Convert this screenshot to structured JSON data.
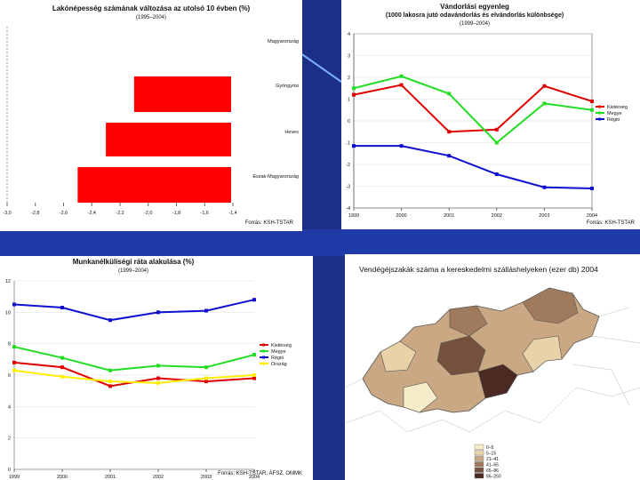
{
  "chart_data": [
    {
      "type": "bar",
      "title": "Lakónépesség számának változása az utolsó 10 évben (%)",
      "subtitle": "(1995–2004)",
      "categories": [
        "Magyarország",
        "Gyöngyösi",
        "Heves",
        "Észak-Magyarország"
      ],
      "values": [
        -1.3,
        -2.1,
        -2.3,
        -2.5
      ],
      "xlim": [
        -3.0,
        -1.0
      ],
      "xticks": [
        "-3,0",
        "-2,8",
        "-2,6",
        "-2,4",
        "-2,2",
        "-2,0",
        "-1,8",
        "-1,6",
        "-1,4"
      ],
      "source": "Forrás: KSH-TSTAR",
      "color": "#ff0000"
    },
    {
      "type": "line",
      "title": "Vándorlási egyenleg",
      "subtitle": "(1000 lakosra jutó odavándorlás és elvándorlás különbsége)",
      "subtitle2": "(1999–2004)",
      "x": [
        "1999",
        "2000",
        "2001",
        "2002",
        "2003",
        "2004"
      ],
      "yticks": [
        "4",
        "3",
        "2",
        "1",
        "0",
        "-1",
        "-2",
        "-3",
        "-4"
      ],
      "ylim": [
        -4,
        4
      ],
      "series": [
        {
          "name": "Kistérség",
          "color": "#e00000",
          "values": [
            1.2,
            1.65,
            -0.5,
            -0.4,
            1.6,
            0.9
          ]
        },
        {
          "name": "Megye",
          "color": "#22dd22",
          "values": [
            1.5,
            2.05,
            1.25,
            -1.0,
            0.8,
            0.5
          ]
        },
        {
          "name": "Régió",
          "color": "#1010d0",
          "values": [
            -1.15,
            -1.15,
            -1.6,
            -2.45,
            -3.05,
            -3.1
          ]
        }
      ],
      "source": "Forrás: KSH-TSTAR"
    },
    {
      "type": "line",
      "title": "Munkanélküliségi ráta alakulása (%)",
      "subtitle": "(1999–2004)",
      "x": [
        "1999",
        "2000",
        "2001",
        "2002",
        "2003",
        "2004"
      ],
      "yticks": [
        "12",
        "10",
        "8",
        "6",
        "4",
        "2",
        "0"
      ],
      "ylim": [
        0,
        12
      ],
      "series": [
        {
          "name": "Kistérség",
          "color": "#e00000",
          "values": [
            6.8,
            6.5,
            5.3,
            5.8,
            5.6,
            5.8
          ]
        },
        {
          "name": "Megye",
          "color": "#22dd22",
          "values": [
            7.8,
            7.1,
            6.3,
            6.6,
            6.5,
            7.3
          ]
        },
        {
          "name": "Régió",
          "color": "#1010d0",
          "values": [
            10.5,
            10.3,
            9.5,
            10.0,
            10.1,
            10.8
          ]
        },
        {
          "name": "Ország",
          "color": "#ffee00",
          "values": [
            6.3,
            5.9,
            5.6,
            5.5,
            5.8,
            6.0
          ]
        }
      ],
      "source": "Forrás: KSH-TSTAR, ÁFSZ, OMMK"
    }
  ],
  "map": {
    "title": "Vendégéjszakák száma a kereskedelmi szálláshelyeken (ezer db) 2004",
    "legend": [
      {
        "label": "0–5",
        "color": "#f7ecc9"
      },
      {
        "label": "5–15",
        "color": "#e9d2a8"
      },
      {
        "label": "21–41",
        "color": "#c9a883"
      },
      {
        "label": "41–65",
        "color": "#9f7a5c"
      },
      {
        "label": "65–86",
        "color": "#74503d"
      },
      {
        "label": "86–250",
        "color": "#4a2a22"
      }
    ]
  }
}
